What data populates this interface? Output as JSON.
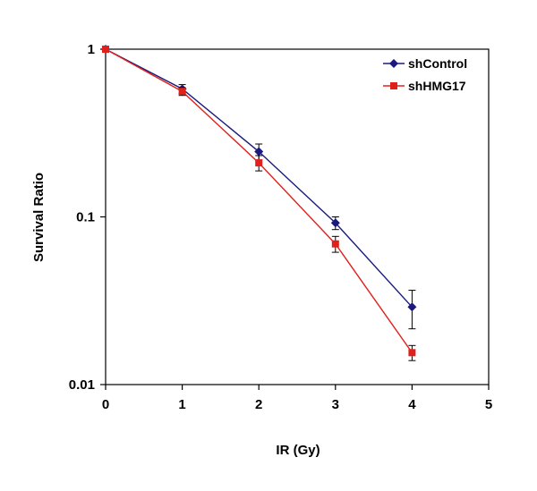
{
  "chart_data": {
    "type": "line",
    "title": "",
    "xlabel": "IR (Gy)",
    "ylabel": "Survival Ratio",
    "yscale": "log",
    "xlim": [
      0,
      5
    ],
    "ylim": [
      0.01,
      1
    ],
    "x_ticks": [
      0,
      1,
      2,
      3,
      4,
      5
    ],
    "x_tick_labels": [
      "0",
      "1",
      "2",
      "3",
      "4",
      "5"
    ],
    "y_ticks": [
      1,
      0.1,
      0.01
    ],
    "y_tick_labels": [
      "1",
      "0.1",
      "0.01"
    ],
    "grid": false,
    "legend_position": "top-right",
    "series": [
      {
        "name": "shControl",
        "marker": "diamond",
        "color": "#1a1a7e",
        "x": [
          0,
          1,
          2,
          3,
          4
        ],
        "values": [
          1.0,
          0.58,
          0.245,
          0.092,
          0.029
        ],
        "errors": [
          0,
          0.035,
          0.027,
          0.008,
          0.0075
        ]
      },
      {
        "name": "shHMG17",
        "marker": "square",
        "color": "#e0211b",
        "x": [
          0,
          1,
          2,
          3,
          4
        ],
        "values": [
          1.0,
          0.56,
          0.21,
          0.069,
          0.0155
        ],
        "errors": [
          0,
          0.03,
          0.022,
          0.0075,
          0.0016
        ]
      }
    ]
  }
}
